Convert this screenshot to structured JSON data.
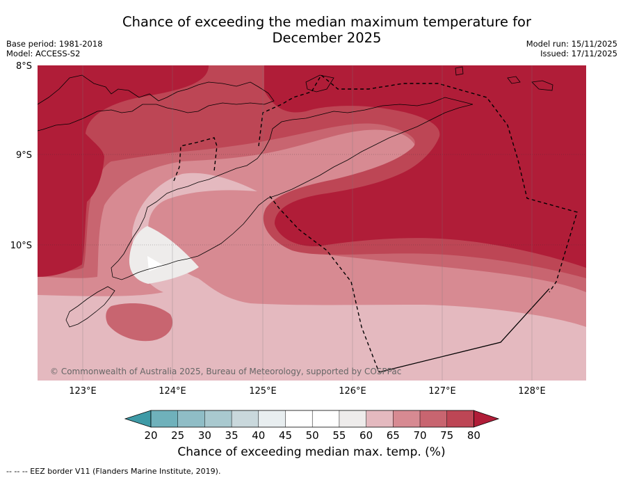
{
  "header": {
    "title_line1": "Chance of exceeding the median maximum temperature for",
    "title_line2": "December 2025",
    "base_period": "Base period: 1981-2018",
    "model": "Model: ACCESS-S2",
    "model_run": "Model run: 15/11/2025",
    "issued": "Issued: 17/11/2025"
  },
  "map": {
    "lat_labels": [
      "8°S",
      "9°S",
      "10°S"
    ],
    "lon_labels": [
      "123°E",
      "124°E",
      "125°E",
      "126°E",
      "127°E",
      "128°E"
    ],
    "copyright": "© Commonwealth of Australia 2025, Bureau of Meteorology, supported by COSPPac"
  },
  "colorbar": {
    "ticks": [
      "20",
      "25",
      "30",
      "35",
      "40",
      "45",
      "50",
      "55",
      "60",
      "65",
      "70",
      "75",
      "80"
    ],
    "colors": [
      "#3e9aa6",
      "#6fb1bb",
      "#8fbdc6",
      "#a9c9cf",
      "#c9d8dc",
      "#e8eef0",
      "#ffffff",
      "#ffffff",
      "#eeeceb",
      "#e4b9bf",
      "#d78a92",
      "#c86570",
      "#bd4655",
      "#b01d38"
    ],
    "label": "Chance of exceeding median max. temp. (%)"
  },
  "legend": {
    "eez": "-- -- -- EEZ border V11 (Flanders Marine Institute, 2019)."
  }
}
